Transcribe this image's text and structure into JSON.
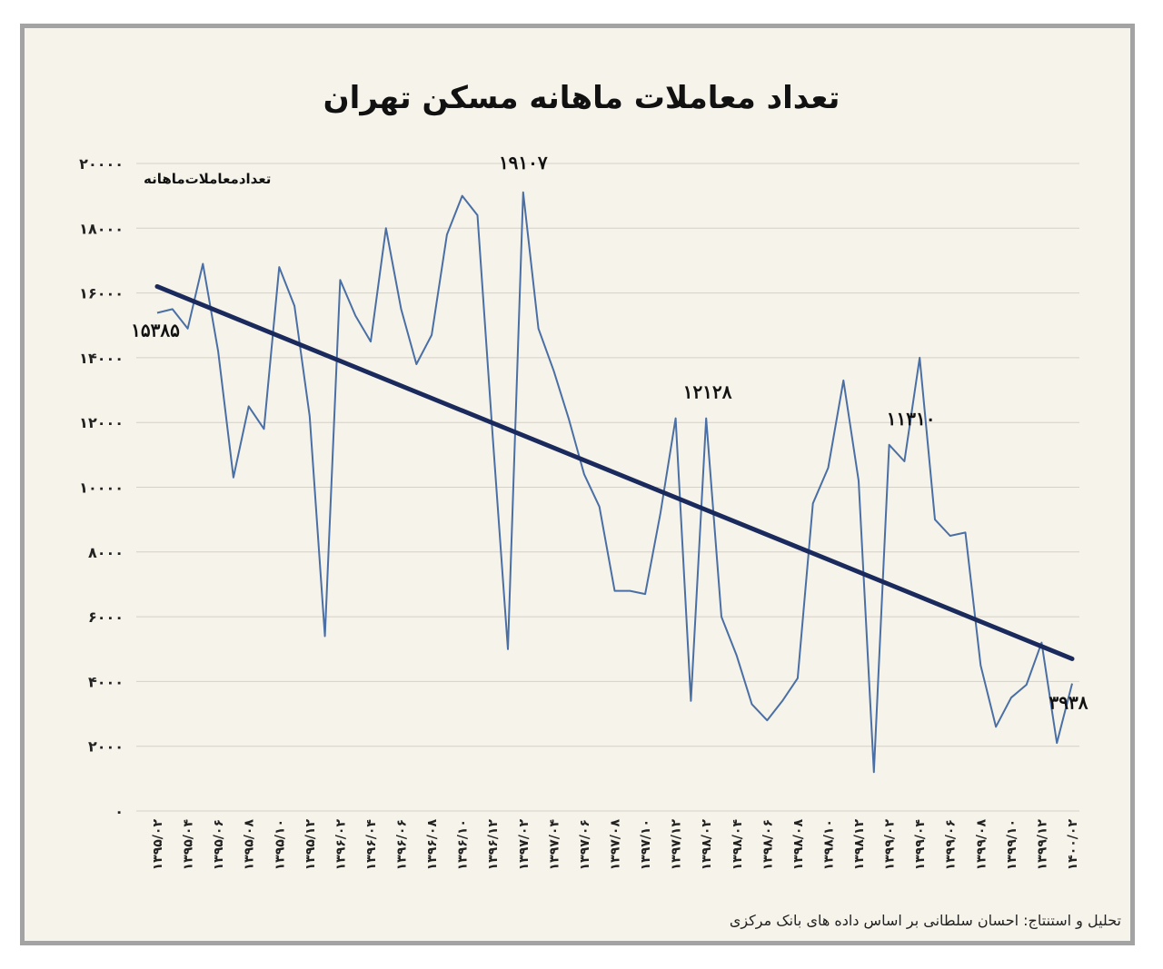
{
  "title": "تعداد معاملات ماهانه مسکن تهران",
  "source": "تحلیل و استنتاج: احسان سلطانی بر اساس داده های بانک مرکزی",
  "colors": {
    "series": "#4a6fa5",
    "trend": "#1b2a5c",
    "grid": "#d4d1c8",
    "background": "#f6f3ea",
    "frame": "#a3a3a3"
  },
  "chart_data": {
    "type": "line",
    "title": "تعداد معاملات ماهانه مسکن تهران",
    "ylabel": "تعدادمعاملات‌ماهانه",
    "xlabel": "",
    "ylim": [
      0,
      20000
    ],
    "grid": true,
    "yticks": [
      "۲۰۰۰۰",
      "۱۸۰۰۰",
      "۱۶۰۰۰",
      "۱۴۰۰۰",
      "۱۲۰۰۰",
      "۱۰۰۰۰",
      "۸۰۰۰",
      "۶۰۰۰",
      "۴۰۰۰",
      "۲۰۰۰",
      "۰"
    ],
    "ytick_values": [
      20000,
      18000,
      16000,
      14000,
      12000,
      10000,
      8000,
      6000,
      4000,
      2000,
      0
    ],
    "xticks": [
      "۱۳۹۵/۰۲",
      "۱۳۹۵/۰۴",
      "۱۳۹۵/۰۶",
      "۱۳۹۵/۰۸",
      "۱۳۹۵/۱۰",
      "۱۳۹۵/۱۲",
      "۱۳۹۶/۰۲",
      "۱۳۹۶/۰۴",
      "۱۳۹۶/۰۶",
      "۱۳۹۶/۰۸",
      "۱۳۹۶/۱۰",
      "۱۳۹۶/۱۲",
      "۱۳۹۷/۰۲",
      "۱۳۹۷/۰۴",
      "۱۳۹۷/۰۶",
      "۱۳۹۷/۰۸",
      "۱۳۹۷/۱۰",
      "۱۳۹۷/۱۲",
      "۱۳۹۸/۰۲",
      "۱۳۹۸/۰۴",
      "۱۳۹۸/۰۶",
      "۱۳۹۸/۰۸",
      "۱۳۹۸/۱۰",
      "۱۳۹۸/۱۲",
      "۱۳۹۹/۰۲",
      "۱۳۹۹/۰۴",
      "۱۳۹۹/۰۶",
      "۱۳۹۹/۰۸",
      "۱۳۹۹/۱۰",
      "۱۳۹۹/۱۲",
      "۱۴۰۰/۰۲"
    ],
    "xtick_indices": [
      0,
      2,
      4,
      6,
      8,
      10,
      12,
      14,
      16,
      18,
      20,
      22,
      24,
      26,
      28,
      30,
      32,
      34,
      36,
      38,
      40,
      42,
      44,
      46,
      48,
      50,
      52,
      54,
      56,
      58,
      60
    ],
    "series": [
      {
        "values": [
          15385,
          15500,
          14900,
          16900,
          14200,
          10300,
          12500,
          11800,
          16800,
          15600,
          12200,
          5400,
          16400,
          15300,
          14500,
          18000,
          15500,
          13800,
          14700,
          17800,
          19000,
          18400,
          11600,
          5000,
          19107,
          14900,
          13600,
          12100,
          10400,
          9400,
          6800,
          6800,
          6700,
          9200,
          12128,
          3400,
          12128,
          6000,
          4800,
          3300,
          2800,
          3400,
          4100,
          9500,
          10600,
          13300,
          10200,
          1200,
          11310,
          10800,
          14000,
          9000,
          8500,
          8600,
          4500,
          2600,
          3500,
          3900,
          5200,
          2100,
          3938
        ]
      }
    ],
    "trendline": {
      "start": 16200,
      "end": 4700
    },
    "annotations": [
      "۱۵۳۸۵",
      "۱۹۱۰۷",
      "۱۲۱۲۸",
      "۱۱۳۱۰",
      "۳۹۳۸"
    ],
    "annotation_indices": [
      0,
      24,
      34,
      48,
      60
    ]
  }
}
